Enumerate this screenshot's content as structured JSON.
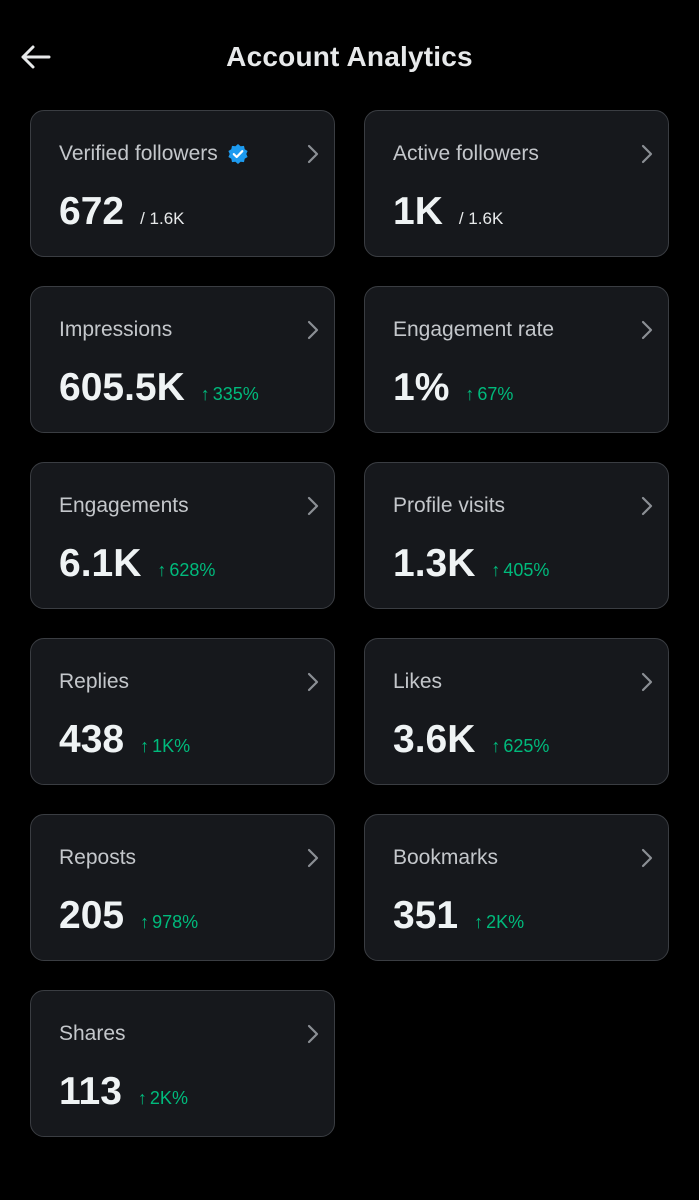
{
  "header": {
    "title": "Account Analytics",
    "back_icon": "arrow-left-icon"
  },
  "colors": {
    "background": "#000000",
    "card_bg": "#16181c",
    "card_border": "#3a3d42",
    "positive": "#00ba7c",
    "verified": "#1d9bf0"
  },
  "cards": [
    {
      "label": "Verified followers",
      "value": "672",
      "total": "/ 1.6K",
      "verified": true
    },
    {
      "label": "Active followers",
      "value": "1K",
      "total": "/ 1.6K"
    },
    {
      "label": "Impressions",
      "value": "605.5K",
      "change": "335%"
    },
    {
      "label": "Engagement rate",
      "value": "1%",
      "change": "67%"
    },
    {
      "label": "Engagements",
      "value": "6.1K",
      "change": "628%"
    },
    {
      "label": "Profile visits",
      "value": "1.3K",
      "change": "405%"
    },
    {
      "label": "Replies",
      "value": "438",
      "change": "1K%"
    },
    {
      "label": "Likes",
      "value": "3.6K",
      "change": "625%"
    },
    {
      "label": "Reposts",
      "value": "205",
      "change": "978%"
    },
    {
      "label": "Bookmarks",
      "value": "351",
      "change": "2K%"
    },
    {
      "label": "Shares",
      "value": "113",
      "change": "2K%"
    }
  ],
  "icons": {
    "chevron": "chevron-right-icon",
    "trend": "arrow-up-icon",
    "verified": "verified-badge-icon"
  }
}
